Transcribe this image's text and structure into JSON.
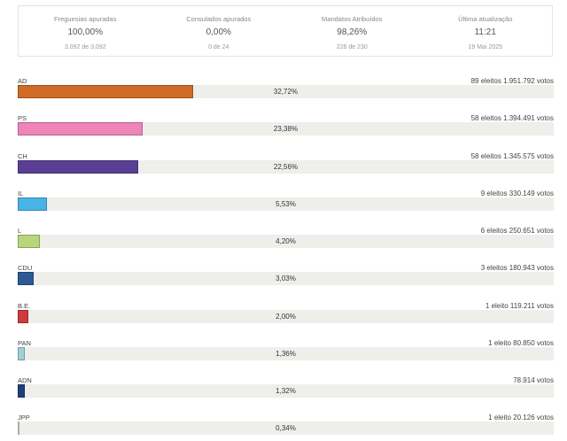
{
  "summary": [
    {
      "label": "Freguesias apuradas",
      "value": "100,00%",
      "sub": "3.092 de 3.092"
    },
    {
      "label": "Consulados apurados",
      "value": "0,00%",
      "sub": "0 de 24"
    },
    {
      "label": "Mandatos Atribuídos",
      "value": "98,26%",
      "sub": "226 de 230"
    },
    {
      "label": "Última atualização",
      "value": "11:21",
      "sub": "19 Mai 2025"
    }
  ],
  "parties": [
    {
      "name": "AD",
      "info": "89 eleitos 1.951.792 votos",
      "pct_label": "32,72%",
      "pct": 32.72,
      "color": "#cf6a27"
    },
    {
      "name": "PS",
      "info": "58 eleitos 1.394.491 votos",
      "pct_label": "23,38%",
      "pct": 23.38,
      "color": "#ee84b8"
    },
    {
      "name": "CH",
      "info": "58 eleitos 1.345.575 votos",
      "pct_label": "22,56%",
      "pct": 22.56,
      "color": "#5a3e96"
    },
    {
      "name": "IL",
      "info": "9 eleitos 330.149 votos",
      "pct_label": "5,53%",
      "pct": 5.53,
      "color": "#48b3e6"
    },
    {
      "name": "L",
      "info": "6 eleitos 250.651 votos",
      "pct_label": "4,20%",
      "pct": 4.2,
      "color": "#b8d57a"
    },
    {
      "name": "CDU",
      "info": "3 eleitos 180.943 votos",
      "pct_label": "3,03%",
      "pct": 3.03,
      "color": "#2b5a94"
    },
    {
      "name": "B.E.",
      "info": "1 eleito 119.211 votos",
      "pct_label": "2,00%",
      "pct": 2.0,
      "color": "#d03a3a"
    },
    {
      "name": "PAN",
      "info": "1 eleito 80.850 votos",
      "pct_label": "1,36%",
      "pct": 1.36,
      "color": "#9fd0d6"
    },
    {
      "name": "ADN",
      "info": "78.914 votos",
      "pct_label": "1,32%",
      "pct": 1.32,
      "color": "#1e3f78"
    },
    {
      "name": "JPP",
      "info": "1 eleito 20.126 votos",
      "pct_label": "0,34%",
      "pct": 0.34,
      "color": "#e6e6e6"
    }
  ]
}
